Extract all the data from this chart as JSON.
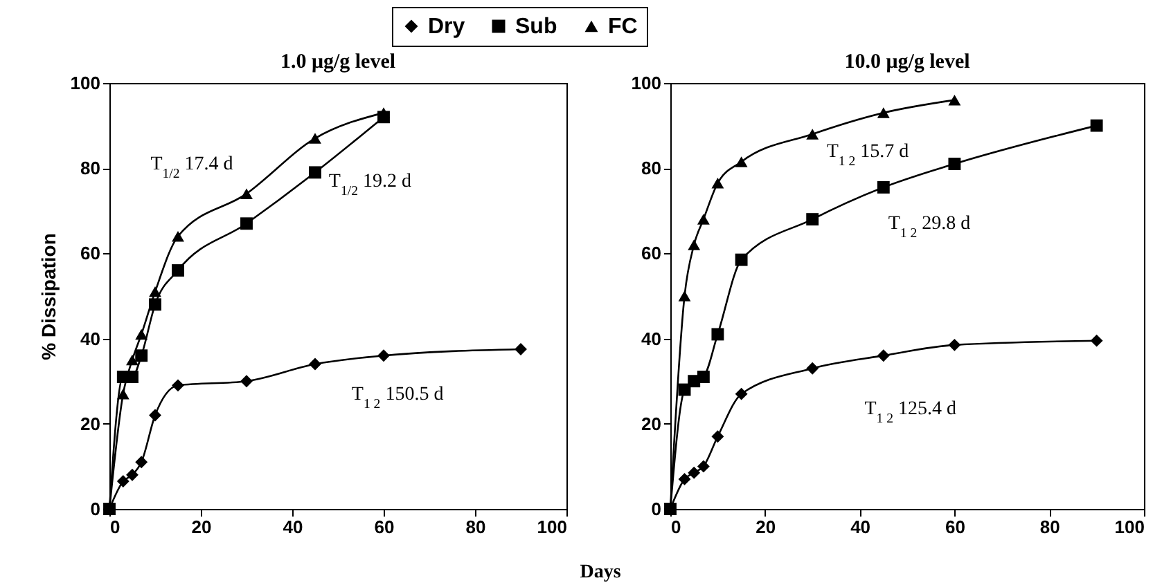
{
  "chart_data": [
    {
      "type": "line",
      "title": "1.0 μg/g level",
      "xlabel": "Days",
      "ylabel": "% Dissipation",
      "xlim": [
        0,
        100
      ],
      "ylim": [
        0,
        100
      ],
      "xticks": [
        0,
        20,
        40,
        60,
        80,
        100
      ],
      "yticks": [
        0,
        20,
        40,
        60,
        80,
        100
      ],
      "grid": false,
      "legend": "top",
      "line_style": "solid",
      "series": [
        {
          "name": "Dry",
          "color": "#000000",
          "marker": "diamond",
          "x": [
            0,
            3,
            5,
            7,
            10,
            15,
            30,
            45,
            60,
            90
          ],
          "values": [
            0,
            6.5,
            8,
            11,
            22,
            29,
            30,
            34,
            36,
            37.5
          ]
        },
        {
          "name": "Sub",
          "color": "#000000",
          "marker": "square",
          "x": [
            0,
            3,
            5,
            7,
            10,
            15,
            30,
            45,
            60
          ],
          "values": [
            0,
            31,
            31,
            36,
            48,
            56,
            67,
            79,
            92
          ]
        },
        {
          "name": "FC",
          "color": "#000000",
          "marker": "triangle",
          "x": [
            0,
            3,
            5,
            7,
            10,
            15,
            30,
            45,
            60
          ],
          "values": [
            0,
            27,
            35,
            41,
            51,
            64,
            74,
            87,
            93
          ]
        }
      ],
      "annotations": [
        "T$_{1/2}$ 17.4 d",
        "T$_{1/2}$ 19.2 d",
        "T$_{1 2}$ 150.5 d"
      ]
    },
    {
      "type": "line",
      "title": "10.0 μg/g level",
      "xlim": [
        0,
        100
      ],
      "ylim": [
        0,
        100
      ],
      "xticks": [
        0,
        20,
        40,
        60,
        80,
        100
      ],
      "yticks": [
        0,
        20,
        40,
        60,
        80,
        100
      ],
      "grid": false,
      "line_style": "solid",
      "series": [
        {
          "color": "#000000",
          "marker": "diamond",
          "x": [
            0,
            3,
            5,
            7,
            10,
            15,
            30,
            45,
            60,
            90
          ],
          "values": [
            0,
            7,
            8.5,
            10,
            17,
            27,
            33,
            36,
            38.5,
            39.5
          ]
        },
        {
          "color": "#000000",
          "marker": "square",
          "x": [
            0,
            3,
            5,
            7,
            10,
            15,
            30,
            45,
            60,
            90
          ],
          "values": [
            0,
            28,
            30,
            31,
            41,
            58.5,
            68,
            75.5,
            81,
            90
          ]
        },
        {
          "color": "#000000",
          "marker": "triangle",
          "x": [
            0,
            3,
            5,
            7,
            10,
            15,
            30,
            45,
            60
          ],
          "values": [
            0,
            50,
            62,
            68,
            76.5,
            81.5,
            88,
            93,
            96
          ]
        }
      ],
      "annotations": [
        "T$_{1 2}$ 15.7 d",
        "T$_{1 2}$ 29.8 d",
        "T$_{1 2}$ 125.4 d"
      ]
    }
  ]
}
